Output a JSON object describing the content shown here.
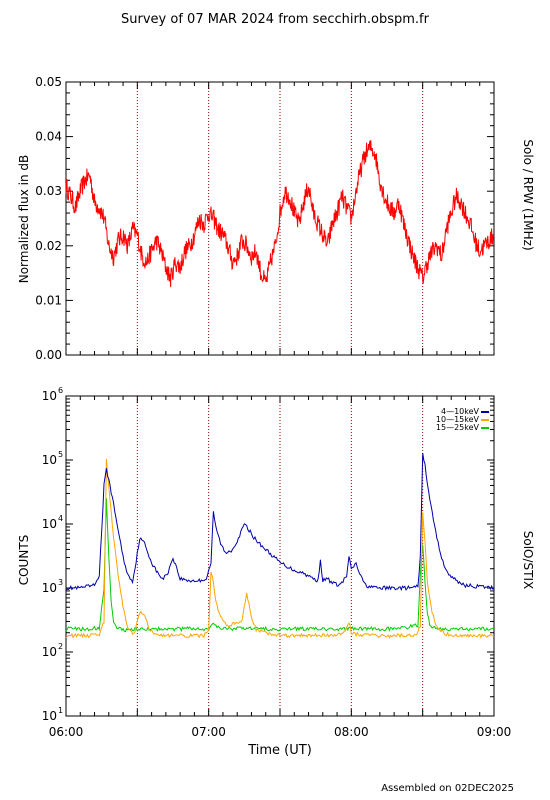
{
  "page": {
    "title": "Survey of 07 MAR 2024 from secchirh.obspm.fr",
    "footer": "Assembled on 02DEC2025"
  },
  "chart_data": [
    {
      "type": "line",
      "ylabel": "Normalized flux in dB",
      "right_label": "Solo / RPW (1MHz)",
      "ylim": [
        0,
        0.05
      ],
      "y_ticks": [
        "0.00",
        "0.01",
        "0.02",
        "0.03",
        "0.04",
        "0.05"
      ],
      "xlim": [
        "06:00",
        "09:00"
      ],
      "vlines": [
        "06:30",
        "07:00",
        "07:30",
        "08:00",
        "08:30"
      ],
      "grid": false,
      "series": [
        {
          "color": "#ff0000",
          "x": [
            "06:00",
            "06:02",
            "06:04",
            "06:06",
            "06:08",
            "06:10",
            "06:12",
            "06:14",
            "06:16",
            "06:18",
            "06:20",
            "06:22",
            "06:24",
            "06:26",
            "06:28",
            "06:30",
            "06:32",
            "06:34",
            "06:36",
            "06:38",
            "06:40",
            "06:42",
            "06:44",
            "06:46",
            "06:48",
            "06:50",
            "06:52",
            "06:54",
            "06:56",
            "06:58",
            "07:00",
            "07:02",
            "07:04",
            "07:06",
            "07:08",
            "07:10",
            "07:12",
            "07:14",
            "07:16",
            "07:18",
            "07:20",
            "07:22",
            "07:24",
            "07:26",
            "07:28",
            "07:30",
            "07:32",
            "07:34",
            "07:36",
            "07:38",
            "07:40",
            "07:42",
            "07:44",
            "07:46",
            "07:48",
            "07:50",
            "07:52",
            "07:54",
            "07:56",
            "07:58",
            "08:00",
            "08:02",
            "08:04",
            "08:06",
            "08:08",
            "08:10",
            "08:12",
            "08:14",
            "08:16",
            "08:18",
            "08:20",
            "08:22",
            "08:24",
            "08:26",
            "08:28",
            "08:30",
            "08:32",
            "08:34",
            "08:36",
            "08:38",
            "08:40",
            "08:42",
            "08:44",
            "08:46",
            "08:48",
            "08:50",
            "08:52",
            "08:54",
            "08:56",
            "08:58",
            "09:00"
          ],
          "y": [
            0.031,
            0.029,
            0.027,
            0.03,
            0.032,
            0.033,
            0.028,
            0.027,
            0.025,
            0.02,
            0.018,
            0.021,
            0.022,
            0.02,
            0.023,
            0.022,
            0.018,
            0.017,
            0.019,
            0.021,
            0.019,
            0.016,
            0.014,
            0.017,
            0.016,
            0.019,
            0.02,
            0.022,
            0.025,
            0.024,
            0.026,
            0.025,
            0.023,
            0.022,
            0.02,
            0.017,
            0.018,
            0.021,
            0.02,
            0.018,
            0.019,
            0.015,
            0.013,
            0.017,
            0.02,
            0.026,
            0.03,
            0.029,
            0.026,
            0.024,
            0.028,
            0.031,
            0.026,
            0.024,
            0.022,
            0.02,
            0.024,
            0.026,
            0.029,
            0.027,
            0.025,
            0.03,
            0.034,
            0.037,
            0.038,
            0.037,
            0.032,
            0.029,
            0.027,
            0.026,
            0.028,
            0.024,
            0.021,
            0.018,
            0.016,
            0.014,
            0.017,
            0.019,
            0.02,
            0.018,
            0.023,
            0.026,
            0.029,
            0.028,
            0.026,
            0.024,
            0.021,
            0.019,
            0.02,
            0.021,
            0.022
          ]
        }
      ]
    },
    {
      "type": "line",
      "ylabel": "COUNTS",
      "xlabel": "Time (UT)",
      "right_label": "SolO/STIX",
      "yscale": "log",
      "ylim": [
        10,
        1000000
      ],
      "y_ticks": [
        {
          "base": "10",
          "exp": "1"
        },
        {
          "base": "10",
          "exp": "2"
        },
        {
          "base": "10",
          "exp": "3"
        },
        {
          "base": "10",
          "exp": "4"
        },
        {
          "base": "10",
          "exp": "5"
        },
        {
          "base": "10",
          "exp": "6"
        }
      ],
      "xlim": [
        "06:00",
        "09:00"
      ],
      "x_ticks": [
        "06:00",
        "07:00",
        "08:00",
        "09:00"
      ],
      "vlines": [
        "06:30",
        "07:00",
        "07:30",
        "08:00",
        "08:30"
      ],
      "legend_position": "top-right",
      "grid": false,
      "series": [
        {
          "name": "4—10keV",
          "color": "#0000aa",
          "x": [
            "06:00",
            "06:06",
            "06:12",
            "06:14",
            "06:16",
            "06:17",
            "06:18",
            "06:20",
            "06:22",
            "06:24",
            "06:26",
            "06:28",
            "06:29",
            "06:31",
            "06:33",
            "06:36",
            "06:39",
            "06:41",
            "06:43",
            "06:45",
            "06:48",
            "06:52",
            "06:56",
            "06:59",
            "07:01",
            "07:02",
            "07:03",
            "07:05",
            "07:07",
            "07:10",
            "07:13",
            "07:15",
            "07:17",
            "07:20",
            "07:24",
            "07:30",
            "07:36",
            "07:40",
            "07:44",
            "07:46",
            "07:47",
            "07:48",
            "07:50",
            "07:52",
            "07:55",
            "07:58",
            "07:59",
            "08:00",
            "08:01",
            "08:02",
            "08:04",
            "08:06",
            "08:10",
            "08:15",
            "08:20",
            "08:25",
            "08:28",
            "08:29",
            "08:30",
            "08:31",
            "08:32",
            "08:34",
            "08:36",
            "08:38",
            "08:40",
            "08:44",
            "08:48",
            "08:54",
            "09:00"
          ],
          "y": [
            1000,
            1000,
            1100,
            1600,
            40000,
            70000,
            50000,
            20000,
            8000,
            3000,
            1600,
            1300,
            2000,
            6000,
            5000,
            2500,
            1600,
            1400,
            1800,
            3000,
            1400,
            1300,
            1300,
            1400,
            2500,
            15000,
            9000,
            5000,
            3500,
            4000,
            6500,
            10000,
            8000,
            5500,
            4000,
            2500,
            1900,
            1700,
            1400,
            1300,
            2800,
            1300,
            1400,
            1200,
            1100,
            1500,
            3200,
            1900,
            2200,
            2400,
            1500,
            1100,
            1000,
            1000,
            1000,
            1000,
            1050,
            3000,
            120000,
            90000,
            40000,
            15000,
            6000,
            3000,
            1800,
            1300,
            1100,
            1050,
            1000
          ]
        },
        {
          "name": "10—15keV",
          "color": "#ffa500",
          "x": [
            "06:00",
            "06:10",
            "06:14",
            "06:16",
            "06:17",
            "06:18",
            "06:20",
            "06:22",
            "06:24",
            "06:26",
            "06:28",
            "06:29",
            "06:31",
            "06:33",
            "06:35",
            "06:40",
            "06:50",
            "06:58",
            "07:00",
            "07:01",
            "07:02",
            "07:03",
            "07:05",
            "07:08",
            "07:10",
            "07:14",
            "07:16",
            "07:18",
            "07:20",
            "07:30",
            "07:50",
            "07:57",
            "07:59",
            "08:00",
            "08:02",
            "08:10",
            "08:20",
            "08:27",
            "08:29",
            "08:30",
            "08:31",
            "08:32",
            "08:34",
            "08:36",
            "08:40",
            "08:50",
            "09:00"
          ],
          "y": [
            180,
            180,
            190,
            300,
            100000,
            40000,
            6000,
            1500,
            500,
            250,
            200,
            200,
            420,
            400,
            220,
            180,
            180,
            180,
            220,
            1800,
            1200,
            600,
            350,
            250,
            270,
            300,
            800,
            350,
            220,
            180,
            180,
            200,
            300,
            200,
            190,
            180,
            180,
            180,
            250,
            15000,
            5000,
            1200,
            400,
            250,
            190,
            180,
            180
          ]
        },
        {
          "name": "15—25keV",
          "color": "#00cc00",
          "x": [
            "06:00",
            "06:10",
            "06:14",
            "06:16",
            "06:17",
            "06:18",
            "06:19",
            "06:20",
            "06:22",
            "06:25",
            "06:30",
            "06:40",
            "06:50",
            "07:00",
            "07:01",
            "07:02",
            "07:03",
            "07:05",
            "07:10",
            "07:20",
            "07:30",
            "07:40",
            "07:50",
            "08:00",
            "08:10",
            "08:20",
            "08:28",
            "08:29",
            "08:30",
            "08:31",
            "08:32",
            "08:33",
            "08:36",
            "08:40",
            "08:50",
            "09:00"
          ],
          "y": [
            230,
            230,
            240,
            1000,
            25000,
            3000,
            600,
            300,
            230,
            220,
            230,
            230,
            230,
            230,
            260,
            280,
            250,
            240,
            230,
            230,
            230,
            230,
            230,
            230,
            230,
            230,
            260,
            1500,
            5000,
            1200,
            400,
            260,
            230,
            230,
            230,
            230
          ]
        }
      ]
    }
  ]
}
